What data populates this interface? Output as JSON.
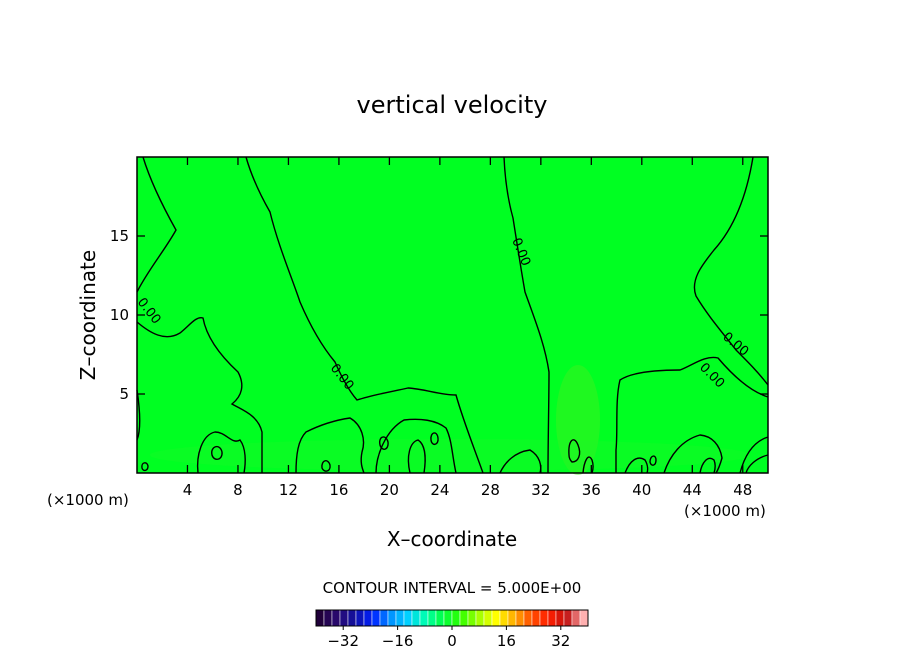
{
  "chart_data": {
    "type": "heatmap",
    "title": "vertical velocity",
    "xlabel": "X–coordinate",
    "ylabel": "Z–coordinate",
    "x_unit": "(×1000 m)",
    "x_ticks": [
      4,
      8,
      12,
      16,
      20,
      24,
      28,
      32,
      36,
      40,
      44,
      48
    ],
    "y_ticks": [
      5,
      10,
      15
    ],
    "xlim": [
      0,
      50
    ],
    "ylim": [
      0,
      20
    ],
    "field_color": "#00ff22",
    "contour_label": "0.00",
    "contour_interval_text": "CONTOUR INTERVAL = 5.000E+00",
    "colorbar": {
      "range": [
        -40,
        40
      ],
      "ticks": [
        -32,
        -16,
        0,
        16,
        32
      ],
      "tick_labels": [
        "−32",
        "−16",
        "0",
        "16",
        "32"
      ],
      "colors": [
        "#20003a",
        "#2a0a70",
        "#1010a0",
        "#0020ff",
        "#0090ff",
        "#00d0ff",
        "#00ffb0",
        "#00ff40",
        "#30ff00",
        "#a0ff00",
        "#ffff00",
        "#ffb000",
        "#ff5000",
        "#ff2000",
        "#c01010",
        "#ffb0b0"
      ]
    }
  }
}
